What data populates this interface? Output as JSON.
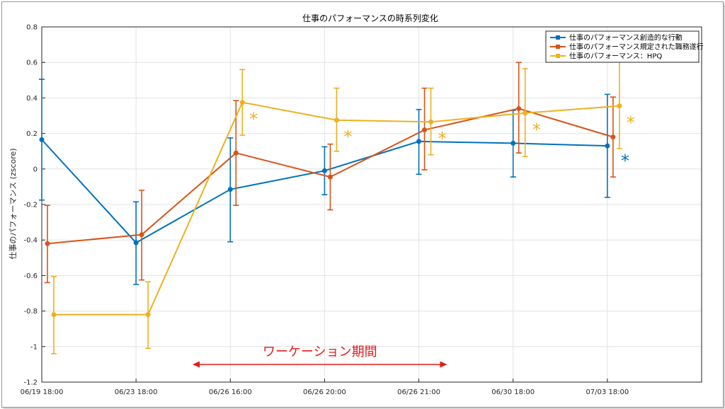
{
  "chart_data": {
    "type": "line",
    "title": "仕事のパフォーマンスの時系列変化",
    "xlabel": "",
    "ylabel": "仕事のパフォーマンス (zscore)",
    "ylim": [
      -1.2,
      0.8
    ],
    "yticks": [
      0.8,
      0.6,
      0.4,
      0.2,
      0,
      -0.2,
      -0.4,
      -0.6,
      -0.8,
      -1,
      -1.2
    ],
    "ytick_labels": [
      "0.8",
      "0.6",
      "0.4",
      "0.2",
      "0",
      "-0.2",
      "-0.4",
      "-0.6",
      "-0.8",
      "-1",
      "-1.2"
    ],
    "categories": [
      "06/19 18:00",
      "06/23 18:00",
      "06/26 16:00",
      "06/26 20:00",
      "06/26 21:00",
      "06/30 18:00",
      "07/03 18:00"
    ],
    "grid": true,
    "legend_position": "top-right",
    "series": [
      {
        "name": "仕事のパフォーマンス創造的な行動",
        "color": "#0072BD",
        "values": [
          0.165,
          -0.415,
          -0.115,
          -0.01,
          0.155,
          0.145,
          0.13
        ],
        "err_high": [
          0.505,
          -0.185,
          0.175,
          0.125,
          0.335,
          0.33,
          0.42
        ],
        "err_low": [
          -0.175,
          -0.65,
          -0.41,
          -0.145,
          -0.03,
          -0.045,
          -0.16
        ]
      },
      {
        "name": "仕事のパフォーマンス規定された職務遂行",
        "color": "#D95319",
        "values": [
          -0.42,
          -0.37,
          0.09,
          -0.045,
          0.22,
          0.34,
          0.18
        ],
        "err_high": [
          -0.205,
          -0.12,
          0.385,
          0.14,
          0.455,
          0.6,
          0.405
        ],
        "err_low": [
          -0.64,
          -0.625,
          -0.205,
          -0.23,
          -0.005,
          0.09,
          -0.045
        ]
      },
      {
        "name": "仕事のパフォーマンス：HPQ",
        "color": "#EDB120",
        "values": [
          -0.82,
          -0.82,
          0.375,
          0.275,
          0.265,
          0.315,
          0.355
        ],
        "err_high": [
          -0.605,
          -0.635,
          0.56,
          0.455,
          0.455,
          0.565,
          0.61
        ],
        "err_low": [
          -1.04,
          -1.01,
          0.19,
          0.1,
          0.08,
          0.07,
          0.115
        ]
      }
    ],
    "significance_markers": [
      {
        "symbol": "*",
        "color": "#EDB120",
        "category_index": 2
      },
      {
        "symbol": "*",
        "color": "#EDB120",
        "category_index": 3
      },
      {
        "symbol": "*",
        "color": "#EDB120",
        "category_index": 4
      },
      {
        "symbol": "*",
        "color": "#EDB120",
        "category_index": 5
      },
      {
        "symbol": "*",
        "color": "#EDB120",
        "category_index": 6
      },
      {
        "symbol": "*",
        "color": "#0072BD",
        "category_index": 6
      }
    ],
    "annotation": {
      "text": "ワーケーション期間",
      "color": "#E8191A",
      "from_category_index": 1.6,
      "to_category_index": 4.3
    }
  }
}
